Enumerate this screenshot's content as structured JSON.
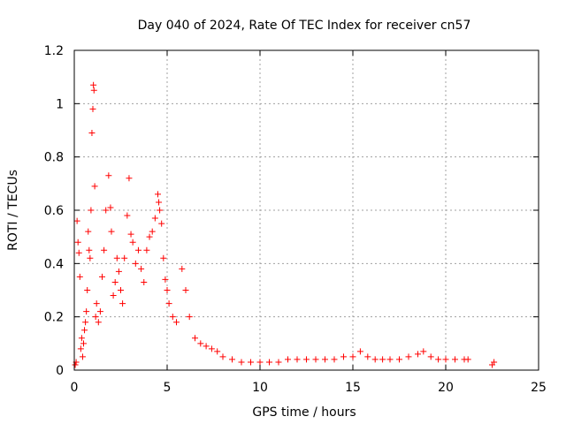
{
  "chart_data": {
    "type": "scatter",
    "title": "Day 040 of 2024, Rate Of TEC Index for receiver cn57",
    "xlabel": "GPS time / hours",
    "ylabel": "ROTI / TECUs",
    "xlim": [
      0,
      25
    ],
    "ylim": [
      0,
      1.2
    ],
    "xticks": [
      "0",
      "5",
      "10",
      "15",
      "20",
      "25"
    ],
    "yticks": [
      "0",
      "0.2",
      "0.4",
      "0.6",
      "0.8",
      "1",
      "1.2"
    ],
    "grid": true,
    "marker": "+",
    "color": "#ff0000",
    "series": [
      {
        "name": "",
        "points": [
          [
            0.05,
            0.02
          ],
          [
            0.1,
            0.03
          ],
          [
            0.15,
            0.56
          ],
          [
            0.2,
            0.48
          ],
          [
            0.25,
            0.44
          ],
          [
            0.3,
            0.35
          ],
          [
            0.35,
            0.08
          ],
          [
            0.4,
            0.12
          ],
          [
            0.45,
            0.05
          ],
          [
            0.5,
            0.1
          ],
          [
            0.55,
            0.15
          ],
          [
            0.6,
            0.18
          ],
          [
            0.65,
            0.22
          ],
          [
            0.7,
            0.3
          ],
          [
            0.75,
            0.52
          ],
          [
            0.8,
            0.45
          ],
          [
            0.85,
            0.42
          ],
          [
            0.9,
            0.6
          ],
          [
            0.95,
            0.89
          ],
          [
            1.0,
            0.98
          ],
          [
            1.03,
            1.07
          ],
          [
            1.06,
            1.05
          ],
          [
            1.1,
            0.69
          ],
          [
            1.15,
            0.2
          ],
          [
            1.2,
            0.25
          ],
          [
            1.3,
            0.18
          ],
          [
            1.4,
            0.22
          ],
          [
            1.5,
            0.35
          ],
          [
            1.6,
            0.45
          ],
          [
            1.7,
            0.6
          ],
          [
            1.85,
            0.73
          ],
          [
            1.95,
            0.61
          ],
          [
            2.0,
            0.52
          ],
          [
            2.1,
            0.28
          ],
          [
            2.2,
            0.33
          ],
          [
            2.3,
            0.42
          ],
          [
            2.4,
            0.37
          ],
          [
            2.5,
            0.3
          ],
          [
            2.6,
            0.25
          ],
          [
            2.7,
            0.42
          ],
          [
            2.85,
            0.58
          ],
          [
            2.95,
            0.72
          ],
          [
            3.05,
            0.51
          ],
          [
            3.15,
            0.48
          ],
          [
            3.3,
            0.4
          ],
          [
            3.45,
            0.45
          ],
          [
            3.6,
            0.38
          ],
          [
            3.75,
            0.33
          ],
          [
            3.9,
            0.45
          ],
          [
            4.05,
            0.5
          ],
          [
            4.2,
            0.52
          ],
          [
            4.35,
            0.57
          ],
          [
            4.5,
            0.66
          ],
          [
            4.55,
            0.63
          ],
          [
            4.6,
            0.6
          ],
          [
            4.7,
            0.55
          ],
          [
            4.8,
            0.42
          ],
          [
            4.9,
            0.34
          ],
          [
            5.0,
            0.3
          ],
          [
            5.1,
            0.25
          ],
          [
            5.3,
            0.2
          ],
          [
            5.5,
            0.18
          ],
          [
            5.8,
            0.38
          ],
          [
            6.0,
            0.3
          ],
          [
            6.2,
            0.2
          ],
          [
            6.5,
            0.12
          ],
          [
            6.8,
            0.1
          ],
          [
            7.1,
            0.09
          ],
          [
            7.4,
            0.08
          ],
          [
            7.7,
            0.07
          ],
          [
            8.0,
            0.05
          ],
          [
            8.5,
            0.04
          ],
          [
            9.0,
            0.03
          ],
          [
            9.5,
            0.03
          ],
          [
            10.0,
            0.03
          ],
          [
            10.5,
            0.03
          ],
          [
            11.0,
            0.03
          ],
          [
            11.5,
            0.04
          ],
          [
            12.0,
            0.04
          ],
          [
            12.5,
            0.04
          ],
          [
            13.0,
            0.04
          ],
          [
            13.5,
            0.04
          ],
          [
            14.0,
            0.04
          ],
          [
            14.5,
            0.05
          ],
          [
            15.0,
            0.05
          ],
          [
            15.4,
            0.07
          ],
          [
            15.8,
            0.05
          ],
          [
            16.2,
            0.04
          ],
          [
            16.6,
            0.04
          ],
          [
            17.0,
            0.04
          ],
          [
            17.5,
            0.04
          ],
          [
            18.0,
            0.05
          ],
          [
            18.5,
            0.06
          ],
          [
            18.8,
            0.07
          ],
          [
            19.2,
            0.05
          ],
          [
            19.6,
            0.04
          ],
          [
            20.0,
            0.04
          ],
          [
            20.5,
            0.04
          ],
          [
            21.0,
            0.04
          ],
          [
            21.2,
            0.04
          ],
          [
            22.5,
            0.02
          ],
          [
            22.6,
            0.03
          ]
        ]
      }
    ]
  }
}
